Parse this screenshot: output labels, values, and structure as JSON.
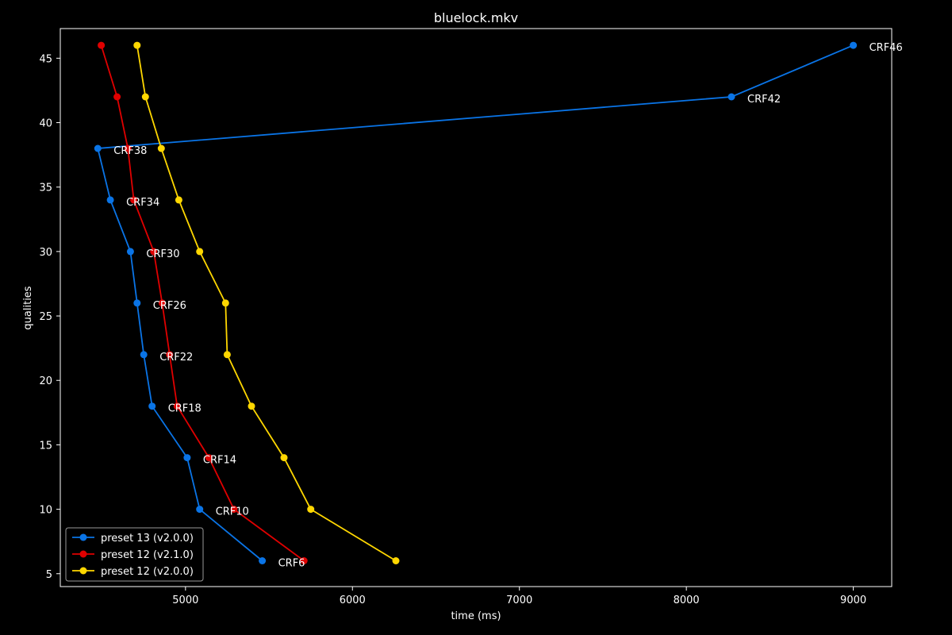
{
  "chart_data": {
    "type": "line",
    "title": "bluelock.mkv",
    "xlabel": "time (ms)",
    "ylabel": "qualities",
    "xlim": [
      4250,
      9230
    ],
    "ylim": [
      4.0,
      47.3
    ],
    "xticks": [
      5000,
      6000,
      7000,
      8000,
      9000
    ],
    "yticks": [
      5,
      10,
      15,
      20,
      25,
      30,
      35,
      40,
      45
    ],
    "grid": false,
    "legend_position": "lower-left",
    "series": [
      {
        "name": "preset 13 (v2.0.0)",
        "color": "#0a74e6",
        "points": [
          {
            "x": 9000,
            "y": 46
          },
          {
            "x": 8270,
            "y": 42
          },
          {
            "x": 4475,
            "y": 38
          },
          {
            "x": 4550,
            "y": 34
          },
          {
            "x": 4670,
            "y": 30
          },
          {
            "x": 4710,
            "y": 26
          },
          {
            "x": 4750,
            "y": 22
          },
          {
            "x": 4800,
            "y": 18
          },
          {
            "x": 5010,
            "y": 14
          },
          {
            "x": 5085,
            "y": 10
          },
          {
            "x": 5460,
            "y": 6
          }
        ]
      },
      {
        "name": "preset 12 (v2.1.0)",
        "color": "#e00000",
        "points": [
          {
            "x": 4495,
            "y": 46
          },
          {
            "x": 4590,
            "y": 42
          },
          {
            "x": 4655,
            "y": 38
          },
          {
            "x": 4690,
            "y": 34
          },
          {
            "x": 4810,
            "y": 30
          },
          {
            "x": 4860,
            "y": 26
          },
          {
            "x": 4905,
            "y": 22
          },
          {
            "x": 4950,
            "y": 18
          },
          {
            "x": 5140,
            "y": 14
          },
          {
            "x": 5290,
            "y": 10
          },
          {
            "x": 5710,
            "y": 6
          }
        ]
      },
      {
        "name": "preset 12 (v2.0.0)",
        "color": "#ffd700",
        "points": [
          {
            "x": 4710,
            "y": 46
          },
          {
            "x": 4760,
            "y": 42
          },
          {
            "x": 4855,
            "y": 38
          },
          {
            "x": 4960,
            "y": 34
          },
          {
            "x": 5085,
            "y": 30
          },
          {
            "x": 5240,
            "y": 26
          },
          {
            "x": 5250,
            "y": 22
          },
          {
            "x": 5395,
            "y": 18
          },
          {
            "x": 5590,
            "y": 14
          },
          {
            "x": 5750,
            "y": 10
          },
          {
            "x": 6260,
            "y": 6
          }
        ]
      }
    ],
    "annotations": [
      {
        "text": "CRF46",
        "x": 9000,
        "y": 46
      },
      {
        "text": "CRF42",
        "x": 8270,
        "y": 42
      },
      {
        "text": "CRF38",
        "x": 4475,
        "y": 38
      },
      {
        "text": "CRF34",
        "x": 4550,
        "y": 34
      },
      {
        "text": "CRF30",
        "x": 4670,
        "y": 30
      },
      {
        "text": "CRF26",
        "x": 4710,
        "y": 26
      },
      {
        "text": "CRF22",
        "x": 4750,
        "y": 22
      },
      {
        "text": "CRF18",
        "x": 4800,
        "y": 18
      },
      {
        "text": "CRF14",
        "x": 5010,
        "y": 14
      },
      {
        "text": "CRF10",
        "x": 5085,
        "y": 10
      },
      {
        "text": "CRF6",
        "x": 5460,
        "y": 6
      }
    ]
  }
}
